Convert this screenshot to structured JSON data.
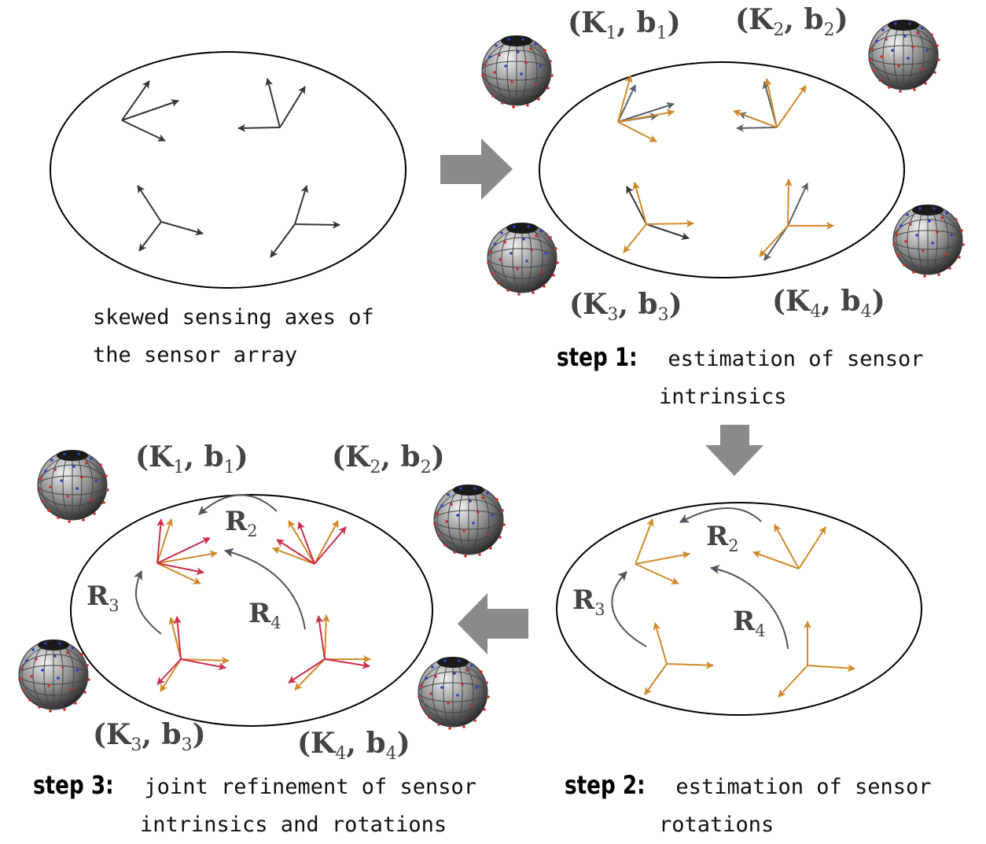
{
  "captions": {
    "panel0": {
      "line1": "skewed sensing axes of",
      "line2": "the sensor array"
    },
    "step1": {
      "label": "step 1:",
      "line1": "estimation of sensor",
      "line2": "intrinsics"
    },
    "step2": {
      "label": "step 2:",
      "line1": "estimation of sensor",
      "line2": "rotations"
    },
    "step3": {
      "label": "step 3:",
      "line1": "joint refinement of sensor",
      "line2": "intrinsics and rotations"
    }
  },
  "sensor_labels": {
    "k": "K",
    "b": "b",
    "s1": "1",
    "s2": "2",
    "s3": "3",
    "s4": "4",
    "open": "(",
    "sep": ", ",
    "close": ")"
  },
  "rotation_labels": {
    "r": "R",
    "s2": "2",
    "s3": "3",
    "s4": "4"
  },
  "colors": {
    "raw_axes": "#33373b",
    "estimated_axes": "#d08a2a",
    "refined_axes": "#cc2e4c",
    "flow_arrow": "#888a8c",
    "rotation_arrow": "#4f565e",
    "label_text": "#444444"
  },
  "icons": {
    "calibration_sphere": "sphere-with-measurement-points-icon",
    "flow": "block-arrow-icon"
  }
}
